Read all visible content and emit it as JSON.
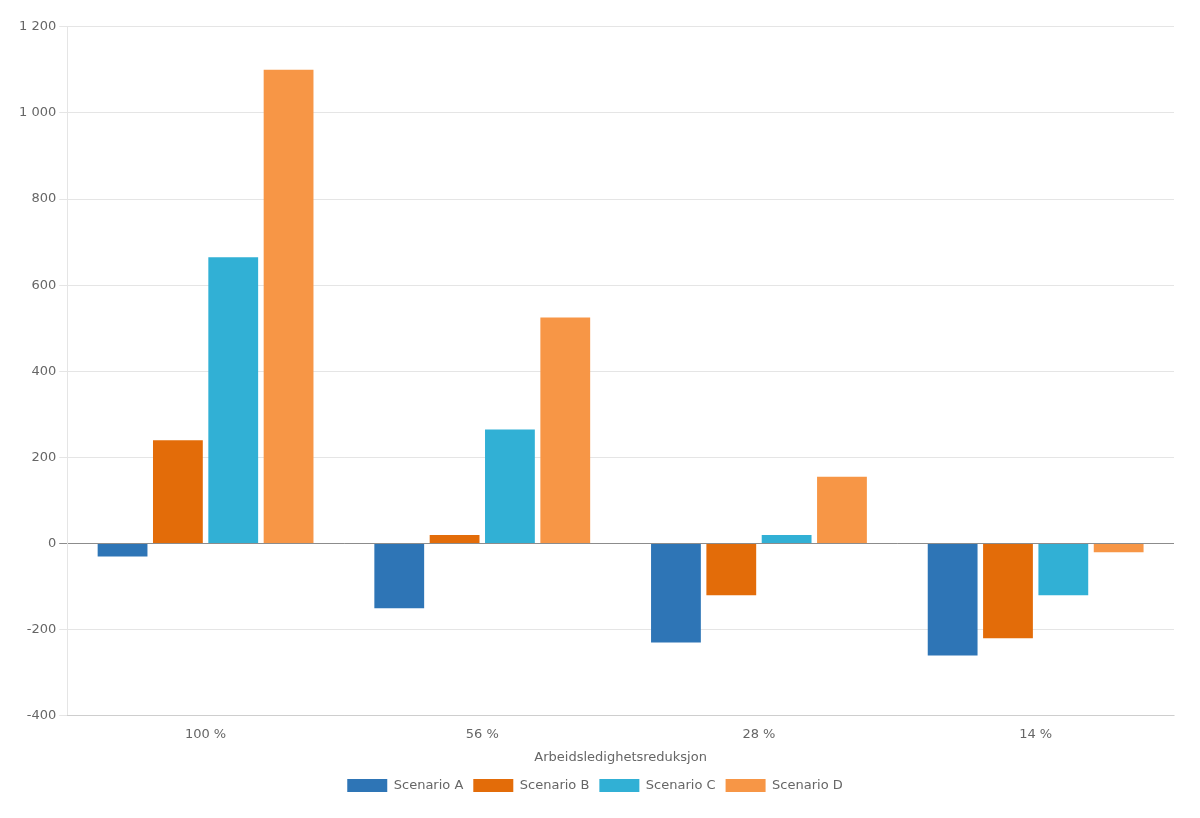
{
  "chart_data": {
    "type": "bar",
    "xlabel": "Arbeidsledighetsreduksjon",
    "categories": [
      "100 %",
      "56 %",
      "28 %",
      "14 %"
    ],
    "series": [
      {
        "name": "Scenario A",
        "color": "#2E75B6",
        "values": [
          -30,
          -150,
          -230,
          -260
        ]
      },
      {
        "name": "Scenario B",
        "color": "#E36C09",
        "values": [
          240,
          20,
          -120,
          -220
        ]
      },
      {
        "name": "Scenario C",
        "color": "#31B0D5",
        "values": [
          665,
          265,
          20,
          -120
        ]
      },
      {
        "name": "Scenario D",
        "color": "#F79646",
        "values": [
          1100,
          525,
          155,
          -20
        ]
      }
    ],
    "ylim": [
      -400,
      1200
    ],
    "yticks": [
      -400,
      -200,
      0,
      200,
      400,
      600,
      800,
      1000,
      {
        "value": 1000,
        "label": "1 000"
      },
      {
        "value": 1200,
        "label": "1 200"
      }
    ],
    "grid": true,
    "legend": "bottom"
  }
}
